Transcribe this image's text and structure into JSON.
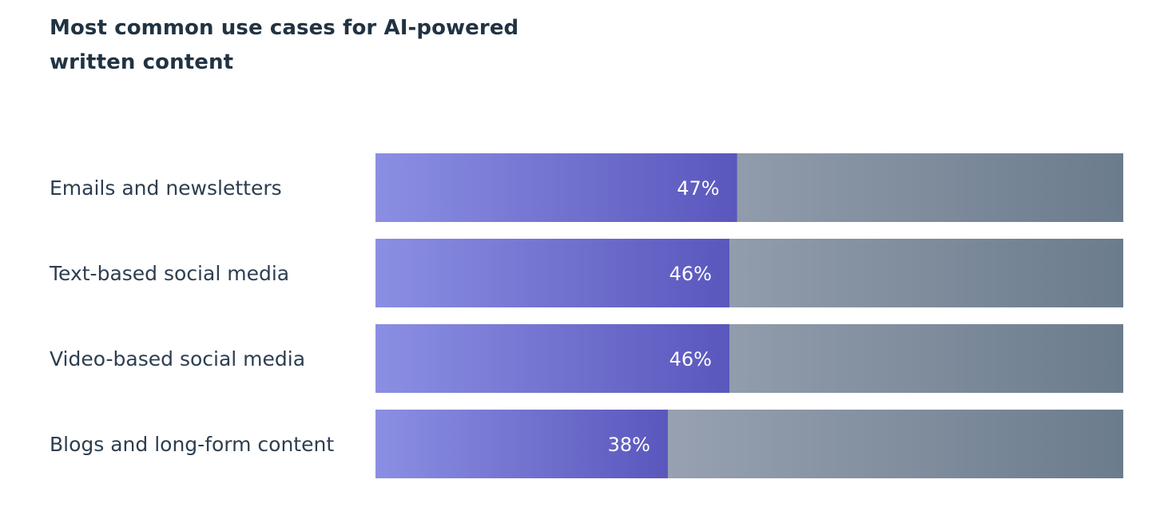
{
  "title": "Most common use cases for AI-powered written content",
  "colors": {
    "title": "#213343",
    "category_text": "#2d3e50",
    "value_text": "#ffffff",
    "bar_fill_start": "#8b8fe3",
    "bar_fill_end": "#5a57bd",
    "track_start": "#b4b9c8",
    "track_end": "#6b7c8d"
  },
  "chart_data": {
    "type": "bar",
    "orientation": "horizontal",
    "categories": [
      "Emails and newsletters",
      "Text-based social media",
      "Video-based social media",
      "Blogs and long-form content"
    ],
    "values": [
      47,
      46,
      46,
      38
    ],
    "value_labels": [
      "47%",
      "46%",
      "46%",
      "38%"
    ],
    "xlim": [
      0,
      100
    ],
    "unit": "%",
    "grid": false,
    "legend": "none"
  }
}
